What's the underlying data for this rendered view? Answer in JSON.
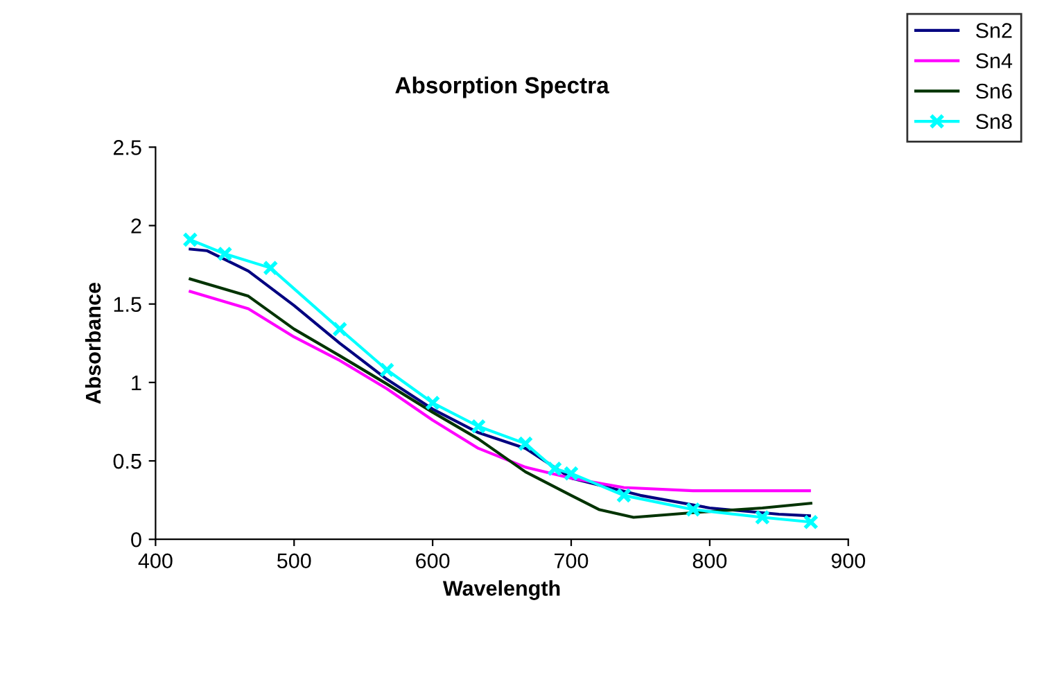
{
  "chart_data": {
    "type": "line",
    "title": "Absorption Spectra",
    "xlabel": "Wavelength",
    "ylabel": "Absorbance",
    "xlim": [
      400,
      900
    ],
    "xticks": [
      400,
      500,
      600,
      700,
      800,
      900
    ],
    "ylim": [
      0,
      2.5
    ],
    "yticks": [
      0,
      0.5,
      1,
      1.5,
      2,
      2.5
    ],
    "grid": false,
    "legend": "top right",
    "series": [
      {
        "name": "Sn2",
        "color": "#000080",
        "x": [
          425,
          437,
          467,
          500,
          533,
          567,
          600,
          633,
          667,
          700,
          750,
          800,
          850,
          872
        ],
        "values": [
          1.85,
          1.84,
          1.71,
          1.49,
          1.25,
          1.02,
          0.83,
          0.68,
          0.58,
          0.39,
          0.28,
          0.2,
          0.16,
          0.15
        ]
      },
      {
        "name": "Sn4",
        "color": "#ff00ff",
        "x": [
          425,
          467,
          500,
          533,
          567,
          600,
          633,
          667,
          700,
          738,
          788,
          872
        ],
        "values": [
          1.58,
          1.47,
          1.29,
          1.14,
          0.96,
          0.76,
          0.58,
          0.46,
          0.39,
          0.33,
          0.31,
          0.31
        ]
      },
      {
        "name": "Sn6",
        "color": "#003300",
        "x": [
          425,
          467,
          500,
          533,
          567,
          600,
          633,
          667,
          700,
          720,
          745,
          788,
          838,
          873
        ],
        "values": [
          1.66,
          1.55,
          1.34,
          1.17,
          0.99,
          0.81,
          0.64,
          0.43,
          0.28,
          0.19,
          0.14,
          0.17,
          0.2,
          0.23
        ]
      },
      {
        "name": "Sn8",
        "color": "#00ffff",
        "marker": "cross",
        "x": [
          425,
          450,
          483,
          533,
          567,
          600,
          633,
          667,
          688,
          700,
          738,
          788,
          838,
          873
        ],
        "values": [
          1.91,
          1.82,
          1.73,
          1.34,
          1.08,
          0.87,
          0.72,
          0.61,
          0.45,
          0.42,
          0.28,
          0.19,
          0.14,
          0.11
        ]
      }
    ]
  }
}
